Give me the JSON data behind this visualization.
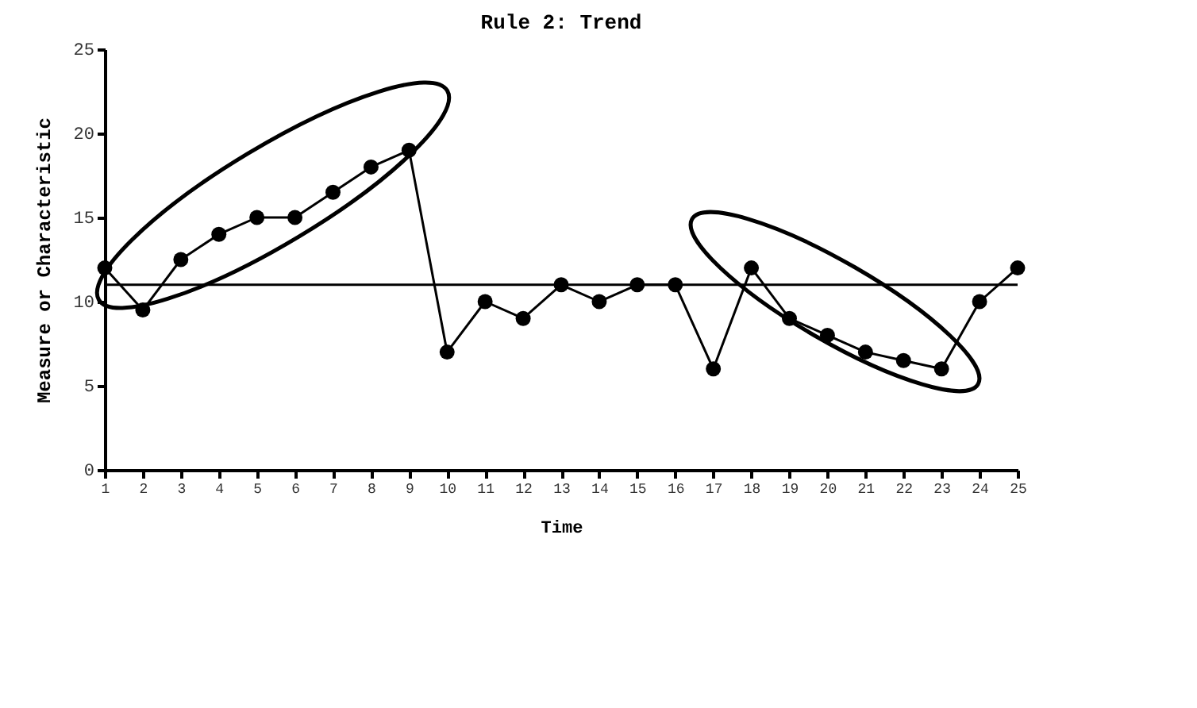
{
  "chart_data": {
    "type": "line",
    "title": "Rule 2: Trend",
    "xlabel": "Time",
    "ylabel": "Measure or Characteristic",
    "x": [
      1,
      2,
      3,
      4,
      5,
      6,
      7,
      8,
      9,
      10,
      11,
      12,
      13,
      14,
      15,
      16,
      17,
      18,
      19,
      20,
      21,
      22,
      23,
      24,
      25
    ],
    "series": [
      {
        "color": "#000000",
        "values": [
          12,
          9.5,
          12.5,
          14,
          15,
          15,
          16.5,
          18,
          19,
          7,
          10,
          9,
          11,
          10,
          11,
          11,
          6,
          12,
          9,
          8,
          7,
          6.5,
          6,
          10,
          12
        ]
      }
    ],
    "xlim": [
      1,
      25
    ],
    "xticks": [
      1,
      2,
      3,
      4,
      5,
      6,
      7,
      8,
      9,
      10,
      11,
      12,
      13,
      14,
      15,
      16,
      17,
      18,
      19,
      20,
      21,
      22,
      23,
      24,
      25
    ],
    "ylim": [
      0,
      25
    ],
    "yticks": [
      0,
      5,
      10,
      15,
      20,
      25
    ],
    "ref_lines": [
      {
        "axis": "y",
        "value": 11,
        "color": "#000000"
      }
    ],
    "marker": "circle",
    "line_style": "solid"
  }
}
